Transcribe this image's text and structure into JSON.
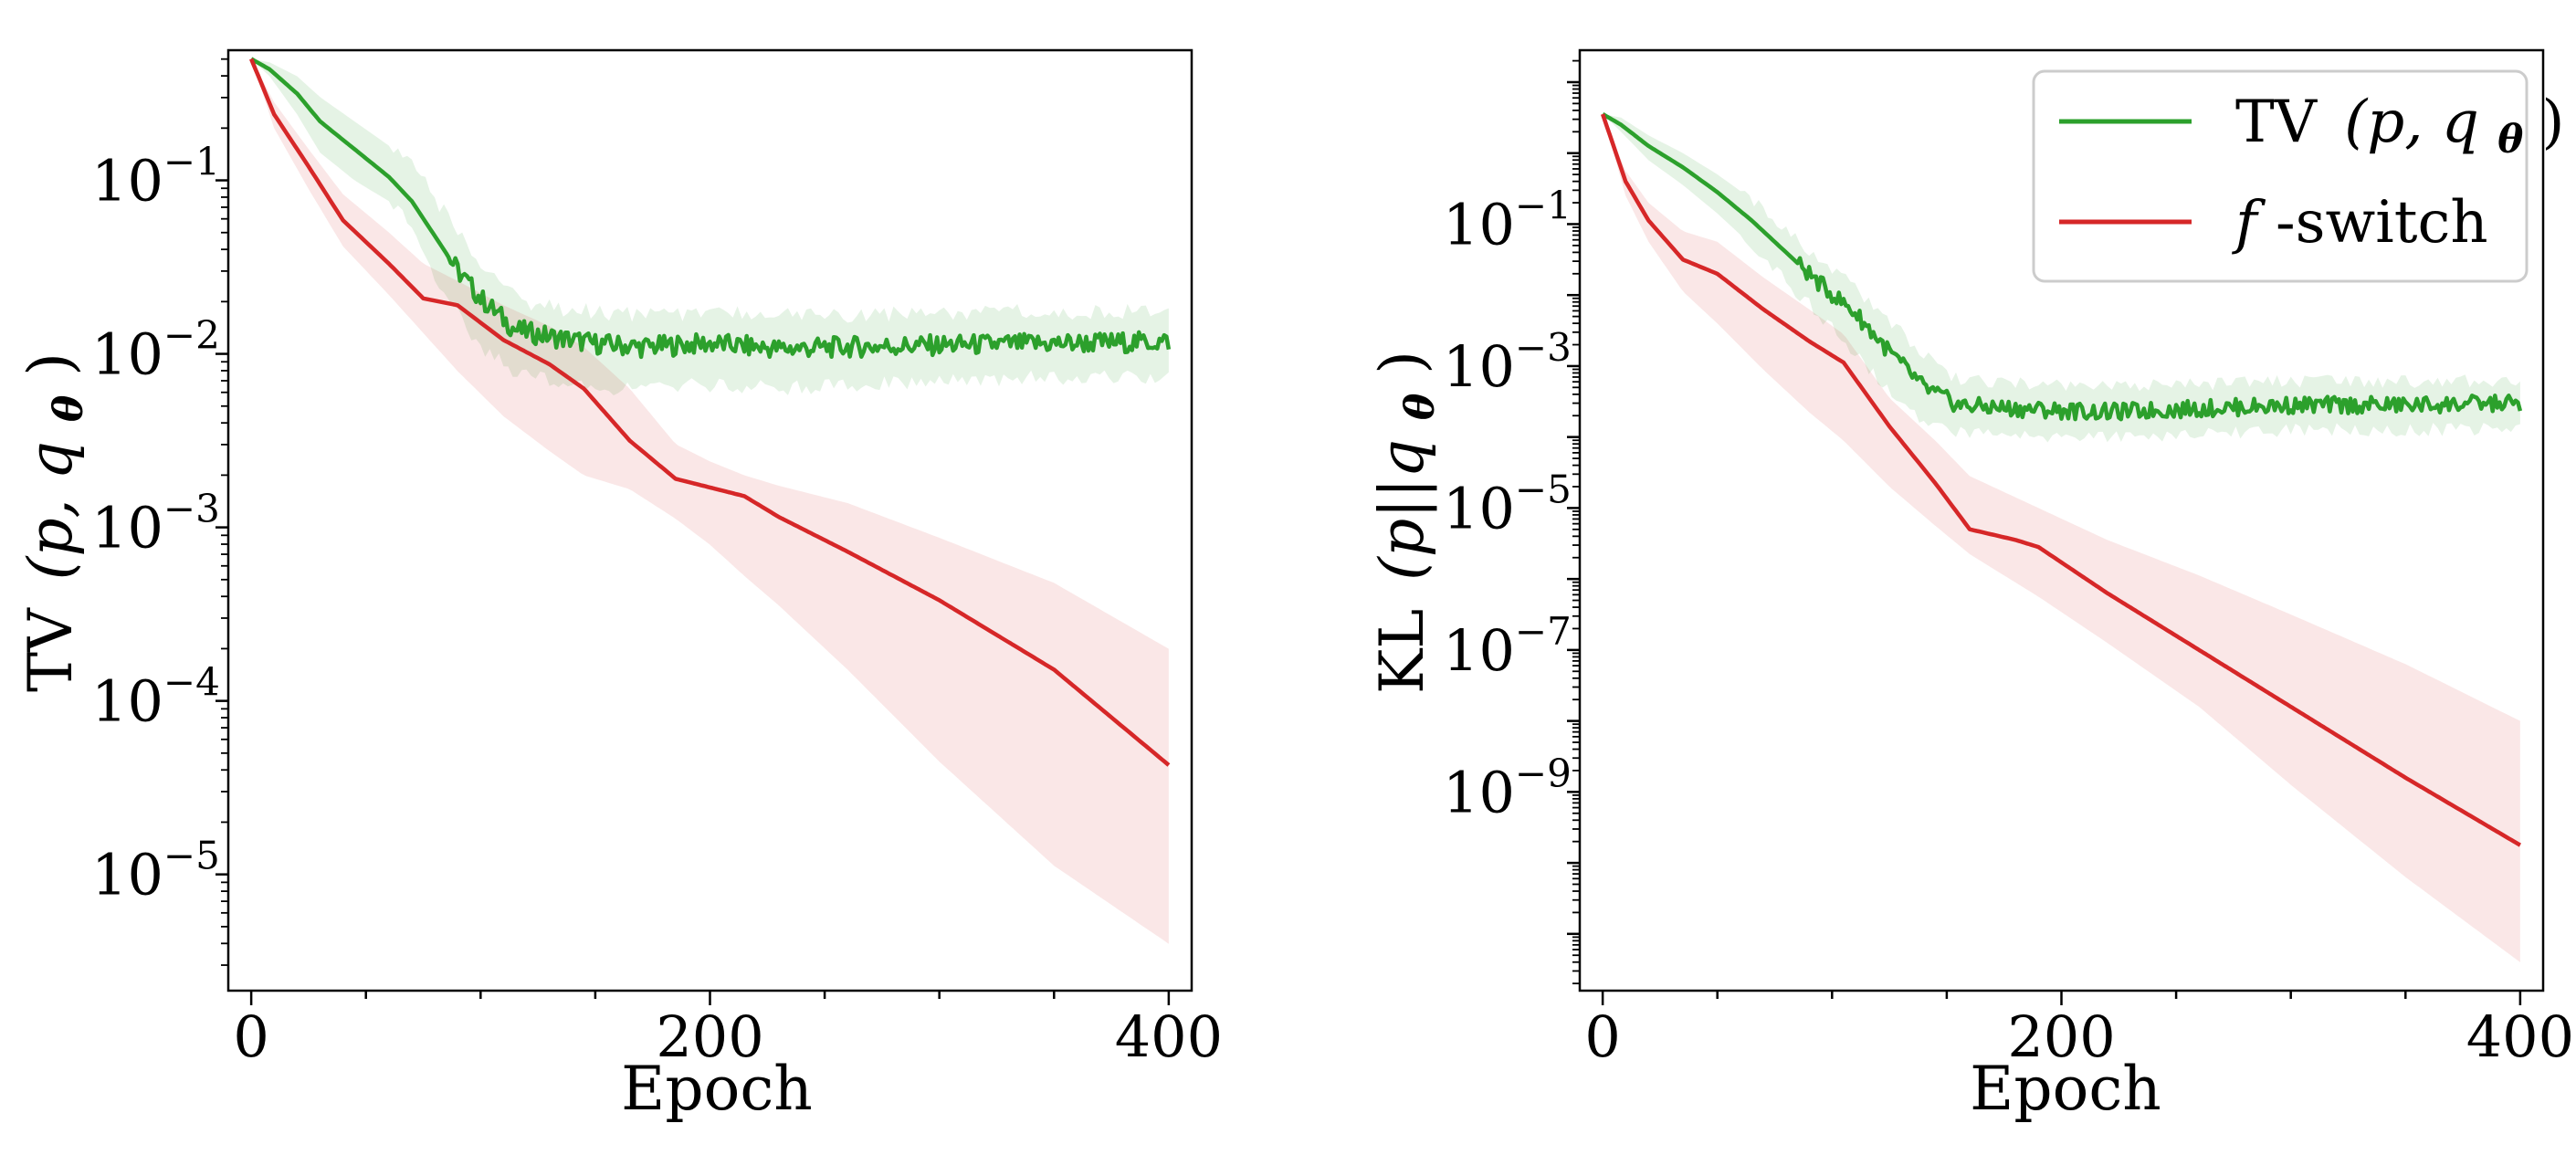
{
  "colors": {
    "green": "#2ca02c",
    "red": "#d62728",
    "green_band": "#2ca02c",
    "red_band": "#d62728",
    "axes": "#000000",
    "legend_border": "#cccccc"
  },
  "legend": {
    "entries": [
      {
        "label_prefix": "TV",
        "label_args": "(p, q",
        "label_sub": "θ",
        "label_close": ")",
        "color_key": "green"
      },
      {
        "label_prefix": "f",
        "label_rest": "-switch",
        "color_key": "red"
      }
    ]
  },
  "chart_data": [
    {
      "type": "line",
      "ylabel": {
        "name": "TV",
        "args": "(p, q",
        "sub": "θ",
        "close": ")"
      },
      "xlabel": "Epoch",
      "xlim": [
        -10,
        410
      ],
      "ylim_log10": [
        -5.67,
        -0.25
      ],
      "x_ticks": [
        {
          "value": 0,
          "label": "0"
        },
        {
          "value": 200,
          "label": "200"
        },
        {
          "value": 400,
          "label": "400"
        }
      ],
      "y_ticks": [
        {
          "exp": -1,
          "base": "10",
          "sup": "−1"
        },
        {
          "exp": -2,
          "base": "10",
          "sup": "−2"
        },
        {
          "exp": -3,
          "base": "10",
          "sup": "−3"
        },
        {
          "exp": -4,
          "base": "10",
          "sup": "−4"
        },
        {
          "exp": -5,
          "base": "10",
          "sup": "−5"
        }
      ],
      "series": [
        {
          "name": "TV (p, q_θ)",
          "color_key": "green",
          "noise": 0.06,
          "x": [
            0,
            8,
            20,
            30,
            45,
            60,
            70,
            80,
            90,
            100,
            115,
            130,
            150,
            170,
            200,
            230,
            260,
            300,
            350,
            400
          ],
          "log10": [
            -0.3,
            -0.36,
            -0.5,
            -0.66,
            -0.82,
            -0.98,
            -1.12,
            -1.32,
            -1.52,
            -1.68,
            -1.86,
            -1.9,
            -1.94,
            -1.96,
            -1.94,
            -1.97,
            -1.96,
            -1.95,
            -1.94,
            -1.93
          ],
          "band_lo": [
            -0.3,
            -0.4,
            -0.62,
            -0.84,
            -1.0,
            -1.12,
            -1.28,
            -1.55,
            -1.78,
            -1.95,
            -2.1,
            -2.15,
            -2.2,
            -2.2,
            -2.18,
            -2.2,
            -2.18,
            -2.16,
            -2.14,
            -2.12
          ],
          "band_hi": [
            -0.3,
            -0.32,
            -0.4,
            -0.52,
            -0.66,
            -0.8,
            -0.92,
            -1.1,
            -1.3,
            -1.46,
            -1.68,
            -1.73,
            -1.76,
            -1.78,
            -1.76,
            -1.78,
            -1.78,
            -1.76,
            -1.76,
            -1.75
          ]
        },
        {
          "name": "f-switch",
          "color_key": "red",
          "noise": 0,
          "x": [
            0,
            10,
            25,
            40,
            60,
            75,
            90,
            110,
            130,
            145,
            165,
            185,
            200,
            215,
            230,
            260,
            300,
            350,
            400
          ],
          "log10": [
            -0.3,
            -0.62,
            -0.92,
            -1.23,
            -1.48,
            -1.68,
            -1.72,
            -1.92,
            -2.06,
            -2.2,
            -2.5,
            -2.72,
            -2.77,
            -2.82,
            -2.94,
            -3.14,
            -3.42,
            -3.82,
            -4.37
          ],
          "band_lo": [
            -0.3,
            -0.7,
            -1.05,
            -1.38,
            -1.66,
            -1.88,
            -2.1,
            -2.36,
            -2.56,
            -2.7,
            -2.78,
            -2.95,
            -3.1,
            -3.28,
            -3.45,
            -3.82,
            -4.35,
            -4.95,
            -5.4
          ],
          "band_hi": [
            -0.3,
            -0.55,
            -0.82,
            -1.08,
            -1.3,
            -1.48,
            -1.58,
            -1.72,
            -1.84,
            -1.96,
            -2.2,
            -2.52,
            -2.62,
            -2.7,
            -2.76,
            -2.86,
            -3.06,
            -3.32,
            -3.7
          ]
        }
      ]
    },
    {
      "type": "line",
      "ylabel": {
        "name": "KL",
        "args": "(p||q",
        "sub": "θ",
        "close": ")"
      },
      "xlabel": "Epoch",
      "xlim": [
        -10,
        410
      ],
      "ylim_log10": [
        -11.8,
        1.45
      ],
      "x_ticks": [
        {
          "value": 0,
          "label": "0"
        },
        {
          "value": 200,
          "label": "200"
        },
        {
          "value": 400,
          "label": "400"
        }
      ],
      "y_ticks": [
        {
          "exp": -1,
          "base": "10",
          "sup": "−1"
        },
        {
          "exp": -3,
          "base": "10",
          "sup": "−3"
        },
        {
          "exp": -5,
          "base": "10",
          "sup": "−5"
        },
        {
          "exp": -7,
          "base": "10",
          "sup": "−7"
        },
        {
          "exp": -9,
          "base": "10",
          "sup": "−9"
        }
      ],
      "series": [
        {
          "name": "TV (p, q_θ)",
          "color_key": "green",
          "noise": 0.12,
          "x": [
            0,
            8,
            20,
            35,
            50,
            65,
            80,
            95,
            110,
            125,
            140,
            155,
            180,
            220,
            260,
            300,
            350,
            400
          ],
          "log10": [
            0.55,
            0.4,
            0.1,
            -0.2,
            -0.55,
            -0.95,
            -1.4,
            -1.85,
            -2.25,
            -2.8,
            -3.3,
            -3.55,
            -3.6,
            -3.65,
            -3.6,
            -3.55,
            -3.55,
            -3.52
          ],
          "band_lo": [
            0.55,
            0.3,
            -0.1,
            -0.45,
            -0.85,
            -1.3,
            -1.8,
            -2.3,
            -2.8,
            -3.35,
            -3.8,
            -3.95,
            -4.0,
            -4.0,
            -3.95,
            -3.9,
            -3.9,
            -3.88
          ],
          "band_hi": [
            0.55,
            0.5,
            0.25,
            0.0,
            -0.3,
            -0.65,
            -1.1,
            -1.5,
            -1.9,
            -2.35,
            -2.85,
            -3.2,
            -3.25,
            -3.3,
            -3.25,
            -3.22,
            -3.22,
            -3.2
          ]
        },
        {
          "name": "f-switch",
          "color_key": "red",
          "noise": 0,
          "x": [
            0,
            10,
            20,
            35,
            50,
            70,
            90,
            105,
            125,
            145,
            160,
            180,
            190,
            220,
            260,
            300,
            350,
            400
          ],
          "log10": [
            0.55,
            -0.4,
            -0.95,
            -1.5,
            -1.7,
            -2.2,
            -2.65,
            -2.95,
            -3.85,
            -4.65,
            -5.3,
            -5.45,
            -5.55,
            -6.2,
            -7.0,
            -7.8,
            -8.8,
            -9.75
          ],
          "band_lo": [
            0.55,
            -0.6,
            -1.25,
            -1.95,
            -2.4,
            -3.05,
            -3.65,
            -4.05,
            -4.7,
            -5.25,
            -5.65,
            -6.05,
            -6.25,
            -6.9,
            -7.8,
            -8.9,
            -10.2,
            -11.4
          ],
          "band_hi": [
            0.55,
            -0.25,
            -0.7,
            -1.1,
            -1.25,
            -1.75,
            -2.2,
            -2.55,
            -3.45,
            -4.05,
            -4.55,
            -4.85,
            -5.0,
            -5.45,
            -5.95,
            -6.5,
            -7.2,
            -8.0
          ]
        }
      ]
    }
  ]
}
